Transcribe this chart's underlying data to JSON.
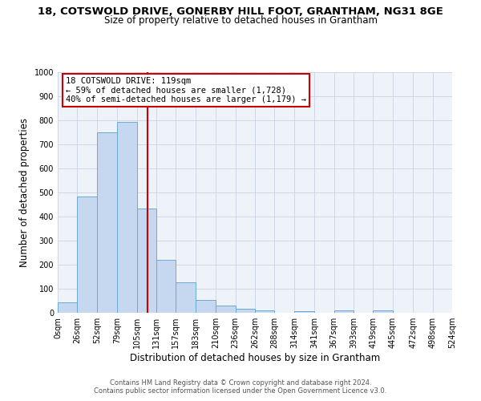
{
  "title_line1": "18, COTSWOLD DRIVE, GONERBY HILL FOOT, GRANTHAM, NG31 8GE",
  "title_line2": "Size of property relative to detached houses in Grantham",
  "xlabel": "Distribution of detached houses by size in Grantham",
  "ylabel": "Number of detached properties",
  "bin_edges": [
    0,
    26,
    52,
    79,
    105,
    131,
    157,
    183,
    210,
    236,
    262,
    288,
    314,
    341,
    367,
    393,
    419,
    445,
    472,
    498,
    524
  ],
  "bar_heights": [
    45,
    485,
    750,
    795,
    435,
    220,
    128,
    52,
    30,
    17,
    10,
    0,
    8,
    0,
    10,
    0,
    10,
    0,
    0,
    0
  ],
  "bar_color": "#c5d8f0",
  "bar_edgecolor": "#6aaad4",
  "vline_x": 119,
  "vline_color": "#cc0000",
  "ylim": [
    0,
    1000
  ],
  "yticks": [
    0,
    100,
    200,
    300,
    400,
    500,
    600,
    700,
    800,
    900,
    1000
  ],
  "xtick_labels": [
    "0sqm",
    "26sqm",
    "52sqm",
    "79sqm",
    "105sqm",
    "131sqm",
    "157sqm",
    "183sqm",
    "210sqm",
    "236sqm",
    "262sqm",
    "288sqm",
    "314sqm",
    "341sqm",
    "367sqm",
    "393sqm",
    "419sqm",
    "445sqm",
    "472sqm",
    "498sqm",
    "524sqm"
  ],
  "annotation_title": "18 COTSWOLD DRIVE: 119sqm",
  "annotation_line2": "← 59% of detached houses are smaller (1,728)",
  "annotation_line3": "40% of semi-detached houses are larger (1,179) →",
  "annotation_box_color": "#cc0000",
  "footer_line1": "Contains HM Land Registry data © Crown copyright and database right 2024.",
  "footer_line2": "Contains public sector information licensed under the Open Government Licence v3.0.",
  "bg_color": "#eef2f9",
  "grid_color": "#c8d4e6",
  "title_fontsize": 9.5,
  "subtitle_fontsize": 8.5,
  "axis_label_fontsize": 8.5,
  "tick_fontsize": 7,
  "annotation_fontsize": 7.5,
  "footer_fontsize": 6
}
